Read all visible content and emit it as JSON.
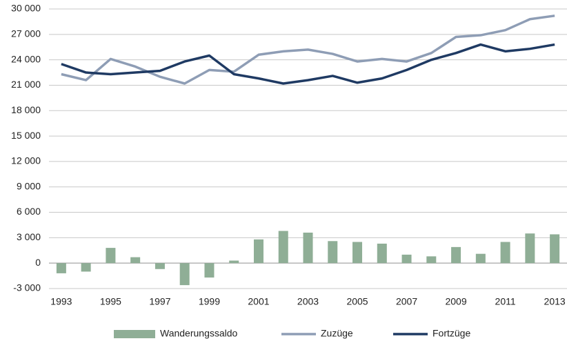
{
  "chart_data": {
    "type": "combo",
    "categories": [
      "1993",
      null,
      "1995",
      null,
      "1997",
      null,
      "1999",
      null,
      "2001",
      null,
      "2003",
      null,
      "2005",
      null,
      "2007",
      null,
      "2009",
      null,
      "2011",
      null,
      "2013"
    ],
    "series": [
      {
        "name": "Wanderungssaldo",
        "type": "bar",
        "color": "#8fae96",
        "values": [
          -1200,
          -1000,
          1800,
          700,
          -700,
          -2600,
          -1700,
          300,
          2800,
          3800,
          3600,
          2600,
          2500,
          2300,
          1000,
          800,
          1900,
          1100,
          2500,
          3500,
          3400
        ]
      },
      {
        "name": "Zuzüge",
        "type": "line",
        "color": "#8e9db5",
        "values": [
          22300,
          21600,
          24100,
          23200,
          22000,
          21200,
          22800,
          22600,
          24600,
          25000,
          25200,
          24700,
          23800,
          24100,
          23800,
          24800,
          26700,
          26900,
          27500,
          28800,
          29200
        ]
      },
      {
        "name": "Fortzüge",
        "type": "line",
        "color": "#1f3a63",
        "values": [
          23500,
          22500,
          22300,
          22500,
          22700,
          23800,
          24500,
          22300,
          21800,
          21200,
          21600,
          22100,
          21300,
          21800,
          22800,
          24000,
          24800,
          25800,
          25000,
          25300,
          25800
        ]
      }
    ],
    "ylim": [
      -3000,
      30000
    ],
    "yticks": [
      {
        "value": -3000,
        "label": "-3 000"
      },
      0,
      {
        "value": 3000,
        "label": "3 000"
      },
      {
        "value": 6000,
        "label": "6 000"
      },
      {
        "value": 9000,
        "label": "9 000"
      },
      {
        "value": 12000,
        "label": "12 000"
      },
      {
        "value": 15000,
        "label": "15 000"
      },
      {
        "value": 18000,
        "label": "18 000"
      },
      {
        "value": 21000,
        "label": "21 000"
      },
      {
        "value": 24000,
        "label": "24 000"
      },
      {
        "value": 27000,
        "label": "27 000"
      },
      {
        "value": 30000,
        "label": "30 000"
      }
    ],
    "grid": true,
    "legend": "bottom"
  }
}
